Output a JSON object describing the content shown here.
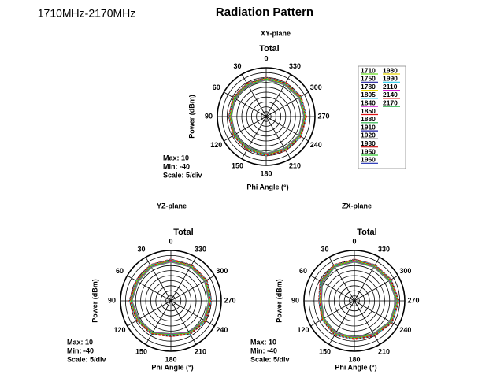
{
  "header": {
    "band": "1710MHz-2170MHz",
    "title": "Radiation Pattern"
  },
  "chart_data": [
    {
      "type": "polar",
      "plane": "XY-plane",
      "title": "Total",
      "ylabel": "Power  (dBm)",
      "xlabel": "Phi Angle  (°)",
      "notes": [
        "Max: 10",
        "Min: -40",
        "Scale: 5/div"
      ],
      "rlim": [
        -40,
        10
      ],
      "rticks": [
        -40,
        -35,
        -30,
        -25,
        -20,
        -15,
        -10,
        -5,
        0,
        5,
        10
      ],
      "grid": true,
      "theta_ticks": [
        0,
        30,
        60,
        90,
        120,
        150,
        180,
        210,
        240,
        270,
        300,
        330
      ],
      "theta": [
        0,
        30,
        60,
        90,
        120,
        150,
        180,
        210,
        240,
        270,
        300,
        330
      ],
      "series": [
        {
          "name": "1710",
          "color": "#66dd22",
          "values": [
            -1,
            -2,
            -2,
            -3,
            -2,
            -2,
            -1,
            -1,
            0,
            0,
            0,
            -1
          ]
        },
        {
          "name": "1750",
          "color": "#1a1a9a",
          "values": [
            0,
            -1,
            -1,
            -2,
            -1,
            -1,
            0,
            0,
            1,
            1,
            1,
            0
          ]
        },
        {
          "name": "1780",
          "color": "#e8d800",
          "values": [
            -2,
            -3,
            -3,
            -4,
            -3,
            -3,
            -2,
            -2,
            -1,
            -1,
            -1,
            -2
          ]
        },
        {
          "name": "1805",
          "color": "#22c8e8",
          "values": [
            -0.5,
            -1.5,
            -1.5,
            -2.5,
            -1.5,
            -1.5,
            -0.5,
            -0.5,
            0.5,
            0.5,
            0.5,
            -0.5
          ]
        },
        {
          "name": "1840",
          "color": "#d020d0",
          "values": [
            -1.5,
            -2.5,
            -2.5,
            -3.5,
            -2.5,
            -2.5,
            -1.5,
            -1.5,
            -0.5,
            -0.5,
            -0.5,
            -1.5
          ]
        },
        {
          "name": "1850",
          "color": "#dd1111",
          "values": [
            0.5,
            -0.5,
            -0.5,
            -1.5,
            -0.5,
            -0.5,
            0.5,
            0.5,
            1.5,
            1.5,
            1.5,
            0.5
          ]
        },
        {
          "name": "1880",
          "color": "#22b040",
          "values": [
            -2.5,
            -3.5,
            -3.5,
            -4.5,
            -3.5,
            -3.5,
            -2.5,
            -2.5,
            -1.5,
            -1.5,
            -1.5,
            -2.5
          ]
        },
        {
          "name": "1910",
          "color": "#1a1aa0",
          "values": [
            -1,
            -2,
            -2,
            -3,
            -2,
            -2,
            -1,
            -1,
            0,
            0,
            0,
            -1
          ]
        },
        {
          "name": "1920",
          "color": "#111111",
          "values": [
            0,
            -1,
            -1,
            -2,
            -1,
            -1,
            0,
            0,
            1,
            1,
            1,
            0
          ]
        },
        {
          "name": "1930",
          "color": "#cc1111",
          "values": [
            -2,
            -3,
            -3,
            -4,
            -3,
            -3,
            -2,
            -2,
            -1,
            -1,
            -1,
            -2
          ]
        },
        {
          "name": "1950",
          "color": "#33cc33",
          "values": [
            -0.5,
            -1.5,
            -1.5,
            -2.5,
            -1.5,
            -1.5,
            -0.5,
            -0.5,
            0.5,
            0.5,
            0.5,
            -0.5
          ]
        },
        {
          "name": "1960",
          "color": "#1a2ab0",
          "values": [
            -1.5,
            -2.5,
            -2.5,
            -3.5,
            -2.5,
            -2.5,
            -1.5,
            -1.5,
            -0.5,
            -0.5,
            -0.5,
            -1.5
          ]
        },
        {
          "name": "1980",
          "color": "#e8d800",
          "values": [
            -1,
            -2,
            -2,
            -3,
            -2,
            -2,
            -1,
            -1,
            0,
            0,
            0,
            -1
          ]
        },
        {
          "name": "1990",
          "color": "#22c8e8",
          "values": [
            0,
            -1,
            -1,
            -2,
            -1,
            -1,
            0,
            0,
            1,
            1,
            1,
            0
          ]
        },
        {
          "name": "2110",
          "color": "#d020d0",
          "values": [
            -2,
            -3,
            -3,
            -4,
            -3,
            -3,
            -2,
            -2,
            -1,
            -1,
            -1,
            -2
          ]
        },
        {
          "name": "2140",
          "color": "#dd1111",
          "values": [
            -0.5,
            -1.5,
            -1.5,
            -2.5,
            -1.5,
            -1.5,
            -0.5,
            -0.5,
            0.5,
            0.5,
            0.5,
            -0.5
          ]
        },
        {
          "name": "2170",
          "color": "#22b040",
          "values": [
            -1.5,
            -2.5,
            -2.5,
            -3.5,
            -2.5,
            -2.5,
            -1.5,
            -1.5,
            -0.5,
            -0.5,
            -0.5,
            -1.5
          ]
        }
      ]
    },
    {
      "type": "polar",
      "plane": "YZ-plane",
      "title": "Total",
      "ylabel": "Power  (dBm)",
      "xlabel": "Phi Angle  (°)",
      "notes": [
        "Max: 10",
        "Min: -40",
        "Scale: 5/div"
      ],
      "rlim": [
        -40,
        10
      ],
      "rticks": [
        -40,
        -35,
        -30,
        -25,
        -20,
        -15,
        -10,
        -5,
        0,
        5,
        10
      ],
      "grid": true,
      "theta_ticks": [
        0,
        30,
        60,
        90,
        120,
        150,
        180,
        210,
        240,
        270,
        300,
        330
      ],
      "theta": [
        0,
        30,
        60,
        90,
        120,
        150,
        180,
        210,
        240,
        270,
        300,
        330
      ],
      "series": [
        {
          "color": "#66dd22",
          "values": [
            0,
            0,
            -1,
            0,
            -2,
            -3,
            -6,
            -3,
            -1,
            -1,
            0,
            0
          ]
        },
        {
          "color": "#1a1a9a",
          "values": [
            1,
            1,
            0,
            1,
            -1,
            -2,
            -5,
            -2,
            0,
            0,
            1,
            1
          ]
        },
        {
          "color": "#e8d800",
          "values": [
            -1,
            -1,
            -2,
            -1,
            -3,
            -4,
            -7,
            -4,
            -2,
            -2,
            -1,
            -1
          ]
        },
        {
          "color": "#22c8e8",
          "values": [
            0.5,
            0.5,
            -0.5,
            0.5,
            -1.5,
            -2.5,
            -5.5,
            -2.5,
            -0.5,
            -0.5,
            0.5,
            0.5
          ]
        },
        {
          "color": "#d020d0",
          "values": [
            -0.5,
            -0.5,
            -1.5,
            -0.5,
            -2.5,
            -3.5,
            -6.5,
            -3.5,
            -1.5,
            -1.5,
            -0.5,
            -0.5
          ]
        },
        {
          "color": "#dd1111",
          "values": [
            1.5,
            1.5,
            0.5,
            1.5,
            -0.5,
            -1.5,
            -4.5,
            -1.5,
            0.5,
            0.5,
            1.5,
            1.5
          ]
        },
        {
          "color": "#22b040",
          "values": [
            -1.5,
            -1.5,
            -2.5,
            -1.5,
            -3.5,
            -4.5,
            -7.5,
            -4.5,
            -2.5,
            -2.5,
            -1.5,
            -1.5
          ]
        },
        {
          "color": "#1a1aa0",
          "values": [
            0,
            0,
            -1,
            0,
            -2,
            -3,
            -6,
            -3,
            -1,
            -1,
            0,
            0
          ]
        },
        {
          "color": "#111111",
          "values": [
            1,
            1,
            0,
            1,
            -1,
            -2,
            -5,
            -2,
            0,
            0,
            1,
            1
          ]
        },
        {
          "color": "#cc1111",
          "values": [
            -1,
            -1,
            -2,
            -1,
            -3,
            -4,
            -7,
            -4,
            -2,
            -2,
            -1,
            -1
          ]
        },
        {
          "color": "#33cc33",
          "values": [
            0.5,
            0.5,
            -0.5,
            0.5,
            -1.5,
            -2.5,
            -5.5,
            -2.5,
            -0.5,
            -0.5,
            0.5,
            0.5
          ]
        },
        {
          "color": "#1a2ab0",
          "values": [
            -0.5,
            -0.5,
            -1.5,
            -0.5,
            -2.5,
            -3.5,
            -6.5,
            -3.5,
            -1.5,
            -1.5,
            -0.5,
            -0.5
          ]
        },
        {
          "color": "#e8d800",
          "values": [
            0,
            0,
            -1,
            0,
            -2,
            -3,
            -6,
            -3,
            -1,
            -1,
            0,
            0
          ]
        },
        {
          "color": "#22c8e8",
          "values": [
            1,
            1,
            0,
            1,
            -1,
            -2,
            -5,
            -2,
            0,
            0,
            1,
            1
          ]
        },
        {
          "color": "#d020d0",
          "values": [
            -1,
            -1,
            -2,
            -1,
            -3,
            -4,
            -7,
            -4,
            -2,
            -2,
            -1,
            -1
          ]
        },
        {
          "color": "#dd1111",
          "values": [
            0.5,
            0.5,
            -0.5,
            0.5,
            -1.5,
            -2.5,
            -5.5,
            -2.5,
            -0.5,
            -0.5,
            0.5,
            0.5
          ]
        },
        {
          "color": "#22b040",
          "values": [
            -0.5,
            -0.5,
            -1.5,
            -0.5,
            -2.5,
            -3.5,
            -6.5,
            -3.5,
            -1.5,
            -1.5,
            -0.5,
            -0.5
          ]
        }
      ]
    },
    {
      "type": "polar",
      "plane": "ZX-plane",
      "title": "Total",
      "ylabel": "Power  (dBm)",
      "xlabel": "Phi Angle  (°)",
      "notes": [
        "Max: 10",
        "Min: -40",
        "Scale: 5/div"
      ],
      "rlim": [
        -40,
        10
      ],
      "rticks": [
        -40,
        -35,
        -30,
        -25,
        -20,
        -15,
        -10,
        -5,
        0,
        5,
        10
      ],
      "grid": true,
      "theta_ticks": [
        0,
        30,
        60,
        90,
        120,
        150,
        180,
        210,
        240,
        270,
        300,
        330
      ],
      "theta": [
        0,
        30,
        60,
        90,
        120,
        150,
        180,
        210,
        240,
        270,
        300,
        330
      ],
      "series": [
        {
          "color": "#66dd22",
          "values": [
            0,
            0,
            -2,
            -6,
            -4,
            -2,
            -3,
            -1,
            2,
            3,
            1,
            0
          ]
        },
        {
          "color": "#1a1a9a",
          "values": [
            1,
            1,
            -1,
            -5,
            -3,
            -1,
            -2,
            0,
            3,
            4,
            2,
            1
          ]
        },
        {
          "color": "#e8d800",
          "values": [
            -1,
            -1,
            -3,
            -7,
            -5,
            -3,
            -4,
            -2,
            1,
            2,
            0,
            -1
          ]
        },
        {
          "color": "#22c8e8",
          "values": [
            0.5,
            0.5,
            -1.5,
            -5.5,
            -3.5,
            -1.5,
            -2.5,
            -0.5,
            2.5,
            3.5,
            1.5,
            0.5
          ]
        },
        {
          "color": "#d020d0",
          "values": [
            -0.5,
            -0.5,
            -2.5,
            -6.5,
            -4.5,
            -2.5,
            -3.5,
            -1.5,
            1.5,
            2.5,
            0.5,
            -0.5
          ]
        },
        {
          "color": "#dd1111",
          "values": [
            1.5,
            1.5,
            -0.5,
            -4.5,
            -2.5,
            -0.5,
            -1.5,
            0.5,
            3.5,
            4.5,
            2.5,
            1.5
          ]
        },
        {
          "color": "#22b040",
          "values": [
            -1.5,
            -1.5,
            -3.5,
            -7.5,
            -5.5,
            -3.5,
            -4.5,
            -2.5,
            0.5,
            1.5,
            -0.5,
            -1.5
          ]
        },
        {
          "color": "#1a1aa0",
          "values": [
            0,
            0,
            -2,
            -6,
            -4,
            -2,
            -3,
            -1,
            2,
            3,
            1,
            0
          ]
        },
        {
          "color": "#111111",
          "values": [
            1,
            1,
            -1,
            -5,
            -3,
            -1,
            -2,
            0,
            3,
            4,
            2,
            1
          ]
        },
        {
          "color": "#cc1111",
          "values": [
            -1,
            -1,
            -3,
            -7,
            -5,
            -3,
            -4,
            -2,
            1,
            2,
            0,
            -1
          ]
        },
        {
          "color": "#33cc33",
          "values": [
            0.5,
            0.5,
            -1.5,
            -5.5,
            -3.5,
            -1.5,
            -2.5,
            -0.5,
            2.5,
            3.5,
            1.5,
            0.5
          ]
        },
        {
          "color": "#1a2ab0",
          "values": [
            -0.5,
            -0.5,
            -2.5,
            -6.5,
            -4.5,
            -2.5,
            -3.5,
            -1.5,
            1.5,
            2.5,
            0.5,
            -0.5
          ]
        },
        {
          "color": "#e8d800",
          "values": [
            0,
            0,
            -2,
            -6,
            -4,
            -2,
            -3,
            -1,
            2,
            3,
            1,
            0
          ]
        },
        {
          "color": "#22c8e8",
          "values": [
            1,
            1,
            -1,
            -5,
            -3,
            -1,
            -2,
            0,
            3,
            4,
            2,
            1
          ]
        },
        {
          "color": "#d020d0",
          "values": [
            -1,
            -1,
            -3,
            -7,
            -5,
            -3,
            -4,
            -2,
            1,
            2,
            0,
            -1
          ]
        },
        {
          "color": "#dd1111",
          "values": [
            0.5,
            0.5,
            -1.5,
            -5.5,
            -3.5,
            -1.5,
            -2.5,
            -0.5,
            2.5,
            3.5,
            1.5,
            0.5
          ]
        },
        {
          "color": "#22b040",
          "values": [
            -0.5,
            -0.5,
            -2.5,
            -6.5,
            -4.5,
            -2.5,
            -3.5,
            -1.5,
            1.5,
            2.5,
            0.5,
            -0.5
          ]
        }
      ]
    }
  ]
}
